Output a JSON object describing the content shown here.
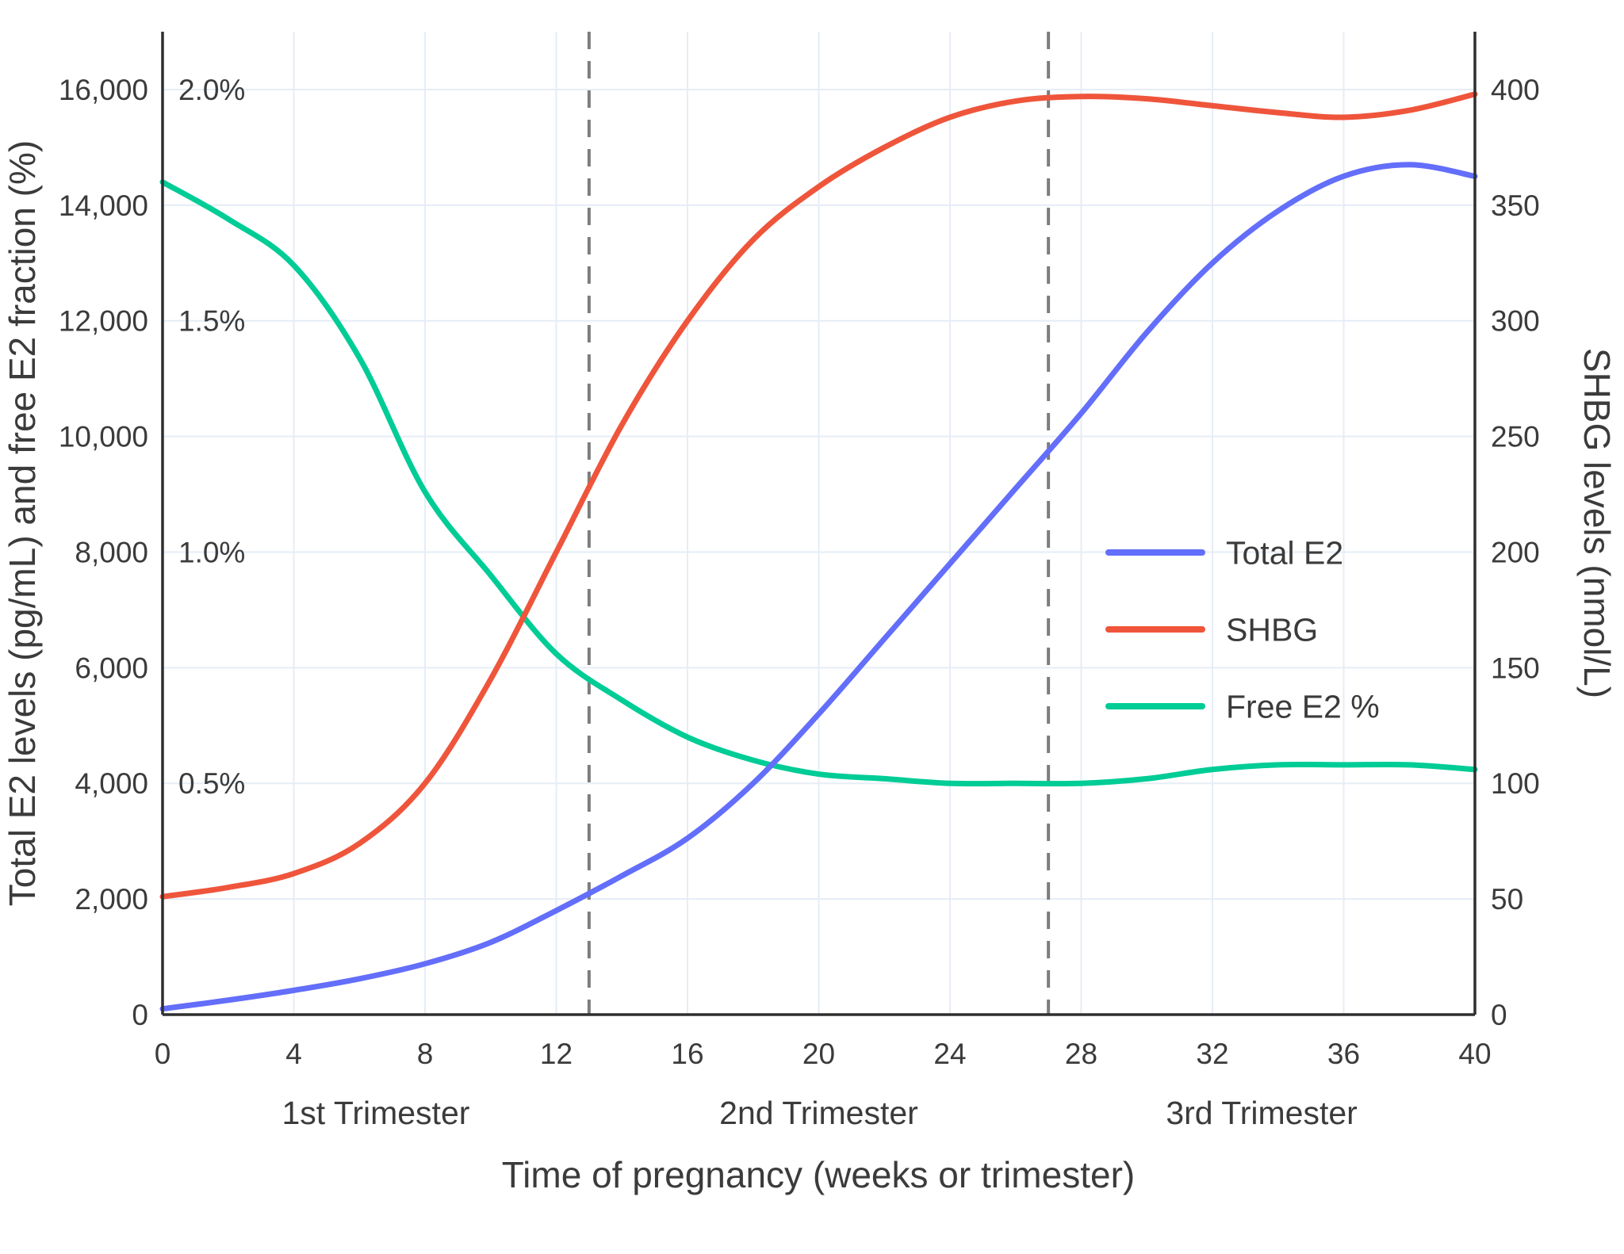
{
  "chart_data": {
    "type": "line",
    "xlabel": "Time of pregnancy (weeks or trimester)",
    "ylabel_left": "Total E2 levels (pg/mL) and free E2 fraction (%)",
    "ylabel_right": "SHBG levels (nmol/L)",
    "x": [
      0,
      2,
      4,
      6,
      8,
      10,
      12,
      14,
      16,
      18,
      20,
      22,
      24,
      26,
      28,
      30,
      32,
      34,
      36,
      38,
      40
    ],
    "series": [
      {
        "name": "Total E2",
        "axis": "left",
        "color": "#636EFA",
        "values": [
          100,
          250,
          420,
          620,
          880,
          1250,
          1800,
          2400,
          3050,
          4000,
          5200,
          6500,
          7800,
          9100,
          10400,
          11800,
          13000,
          13900,
          14500,
          14700,
          14500
        ]
      },
      {
        "name": "SHBG",
        "axis": "right",
        "color": "#EF553B",
        "values": [
          51,
          55,
          61,
          74,
          100,
          145,
          200,
          255,
          300,
          335,
          358,
          375,
          388,
          395,
          397,
          396,
          393,
          390,
          388,
          391,
          398
        ]
      },
      {
        "name": "Free E2 %",
        "axis": "percent",
        "color": "#00CC96",
        "values": [
          1.8,
          1.72,
          1.62,
          1.42,
          1.13,
          0.95,
          0.78,
          0.68,
          0.6,
          0.55,
          0.52,
          0.51,
          0.5,
          0.5,
          0.5,
          0.51,
          0.53,
          0.54,
          0.54,
          0.54,
          0.53
        ]
      }
    ],
    "x_range": [
      0,
      40
    ],
    "x_ticks": [
      0,
      4,
      8,
      12,
      16,
      20,
      24,
      28,
      32,
      36,
      40
    ],
    "left_axis": {
      "range": [
        0,
        17000
      ],
      "ticks": [
        0,
        2000,
        4000,
        6000,
        8000,
        10000,
        12000,
        14000,
        16000
      ],
      "labels": [
        "0",
        "2,000",
        "4,000",
        "6,000",
        "8,000",
        "10,000",
        "12,000",
        "14,000",
        "16,000"
      ]
    },
    "right_axis": {
      "range": [
        0,
        425
      ],
      "ticks": [
        0,
        50,
        100,
        150,
        200,
        250,
        300,
        350,
        400
      ],
      "labels": [
        "0",
        "50",
        "100",
        "150",
        "200",
        "250",
        "300",
        "350",
        "400"
      ]
    },
    "percent_labels": [
      {
        "text": "0.5%",
        "value": 4000
      },
      {
        "text": "1.0%",
        "value": 8000
      },
      {
        "text": "1.5%",
        "value": 12000
      },
      {
        "text": "2.0%",
        "value": 16000
      }
    ],
    "percent_to_left_units": 8000,
    "trimester_boundaries_weeks": [
      13,
      27
    ],
    "trimester_labels": [
      {
        "text": "1st Trimester",
        "center_week": 6.5
      },
      {
        "text": "2nd Trimester",
        "center_week": 20
      },
      {
        "text": "3rd Trimester",
        "center_week": 33.5
      }
    ],
    "legend": {
      "position": "middle-right",
      "entries": [
        "Total E2",
        "SHBG",
        "Free E2 %"
      ]
    },
    "grid": true,
    "colors": {
      "grid": "#E6EDF6",
      "axis": "#2F2F2F",
      "text": "#3B3B3B",
      "dashed": "#7D7D7D",
      "background": "#FFFFFF"
    }
  }
}
